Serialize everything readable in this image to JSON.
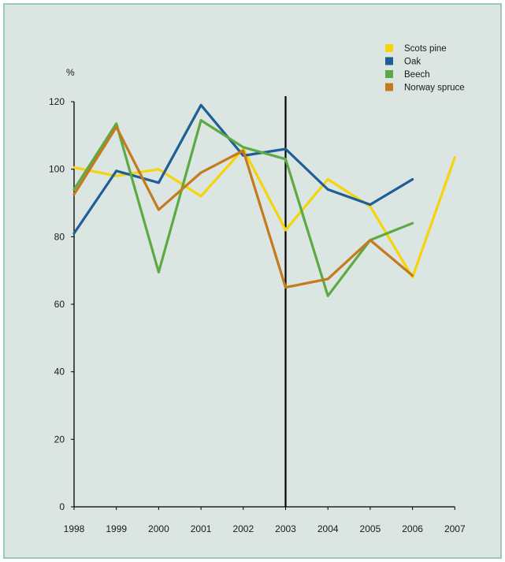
{
  "chart_data": {
    "type": "line",
    "ylabel": "%",
    "ylim": [
      0,
      120
    ],
    "yticks": [
      0,
      20,
      40,
      60,
      80,
      100,
      120
    ],
    "categories": [
      "1998",
      "1999",
      "2000",
      "2001",
      "2002",
      "2003",
      "2004",
      "2005",
      "2006",
      "2007"
    ],
    "marker_year": "2003",
    "legend_position": "top-right",
    "grid": false,
    "series": [
      {
        "name": "Scots pine",
        "color": "#f5d40a",
        "values": [
          100.5,
          98,
          100,
          92,
          106,
          82,
          97,
          89,
          68,
          103.5
        ]
      },
      {
        "name": "Oak",
        "color": "#1f5e96",
        "values": [
          81,
          99.5,
          96,
          119,
          104,
          106,
          94,
          89.5,
          97,
          null
        ]
      },
      {
        "name": "Beech",
        "color": "#5daa45",
        "values": [
          94,
          113.5,
          69.5,
          114.5,
          106.5,
          103,
          62.5,
          79,
          84,
          null
        ]
      },
      {
        "name": "Norway spruce",
        "color": "#c47a1e",
        "values": [
          92.5,
          112.5,
          88,
          99,
          105.5,
          65,
          67.5,
          79,
          68.5,
          null
        ]
      }
    ]
  }
}
